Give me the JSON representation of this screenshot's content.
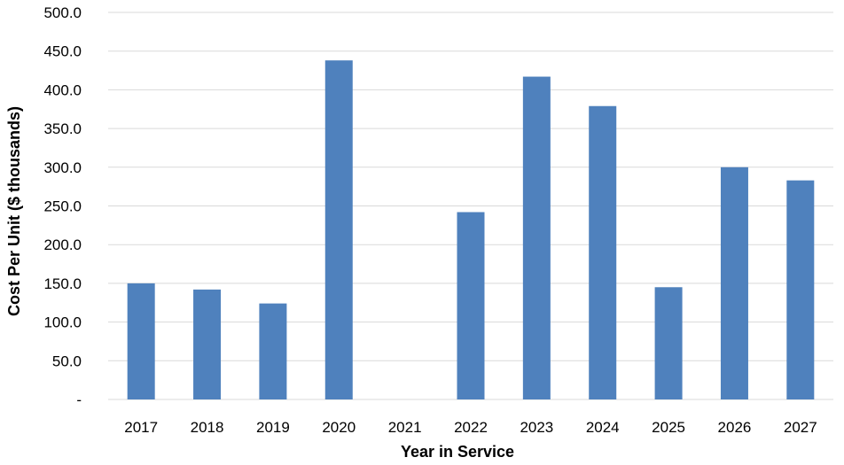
{
  "chart_data": {
    "type": "bar",
    "title": "",
    "xlabel": "Year in Service",
    "ylabel": "Cost Per Unit ($ thousands)",
    "categories": [
      "2017",
      "2018",
      "2019",
      "2020",
      "2021",
      "2022",
      "2023",
      "2024",
      "2025",
      "2026",
      "2027"
    ],
    "values": [
      150,
      142,
      124,
      438,
      null,
      242,
      417,
      379,
      145,
      300,
      283
    ],
    "ylim": [
      0,
      500
    ],
    "yticks": [
      0,
      50,
      100,
      150,
      200,
      250,
      300,
      350,
      400,
      450,
      500
    ],
    "ytick_labels": [
      "-",
      "50.0",
      "100.0",
      "150.0",
      "200.0",
      "250.0",
      "300.0",
      "350.0",
      "400.0",
      "450.0",
      "500.0"
    ],
    "grid": true,
    "legend": "none",
    "bar_color": "#4f81bd",
    "grid_color": "#d9d9d9"
  }
}
